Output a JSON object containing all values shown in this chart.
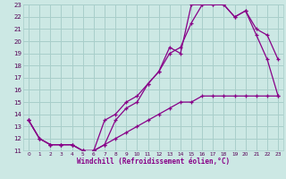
{
  "xlabel": "Windchill (Refroidissement éolien,°C)",
  "bg_color": "#cce8e4",
  "grid_color": "#a8ceca",
  "line_color": "#880088",
  "line1_x": [
    0,
    1,
    2,
    3,
    4,
    5,
    6,
    7,
    8,
    9,
    10,
    11,
    12,
    13,
    14,
    15,
    16,
    17,
    18,
    19,
    20,
    21,
    22,
    23
  ],
  "line1_y": [
    13.5,
    12.0,
    11.5,
    11.5,
    11.5,
    11.0,
    11.0,
    13.5,
    14.0,
    15.0,
    15.5,
    16.5,
    17.5,
    19.5,
    19.0,
    23.0,
    23.0,
    23.0,
    23.0,
    22.0,
    22.5,
    21.0,
    20.5,
    18.5
  ],
  "line2_x": [
    0,
    1,
    2,
    3,
    4,
    5,
    6,
    7,
    8,
    9,
    10,
    11,
    12,
    13,
    14,
    15,
    16,
    17,
    18,
    19,
    20,
    21,
    22,
    23
  ],
  "line2_y": [
    13.5,
    12.0,
    11.5,
    11.5,
    11.5,
    11.0,
    11.0,
    11.5,
    13.5,
    14.5,
    15.0,
    16.5,
    17.5,
    19.0,
    19.5,
    21.5,
    23.0,
    23.0,
    23.0,
    22.0,
    22.5,
    20.5,
    18.5,
    15.5
  ],
  "line3_x": [
    0,
    1,
    2,
    3,
    4,
    5,
    6,
    7,
    8,
    9,
    10,
    11,
    12,
    13,
    14,
    15,
    16,
    17,
    18,
    19,
    20,
    21,
    22,
    23
  ],
  "line3_y": [
    13.5,
    12.0,
    11.5,
    11.5,
    11.5,
    11.0,
    11.0,
    11.5,
    12.0,
    12.5,
    13.0,
    13.5,
    14.0,
    14.5,
    15.0,
    15.0,
    15.5,
    15.5,
    15.5,
    15.5,
    15.5,
    15.5,
    15.5,
    15.5
  ],
  "xlim": [
    -0.5,
    23.5
  ],
  "ylim": [
    11,
    23
  ],
  "xticks": [
    0,
    1,
    2,
    3,
    4,
    5,
    6,
    7,
    8,
    9,
    10,
    11,
    12,
    13,
    14,
    15,
    16,
    17,
    18,
    19,
    20,
    21,
    22,
    23
  ],
  "yticks": [
    11,
    12,
    13,
    14,
    15,
    16,
    17,
    18,
    19,
    20,
    21,
    22,
    23
  ],
  "marker": "+"
}
